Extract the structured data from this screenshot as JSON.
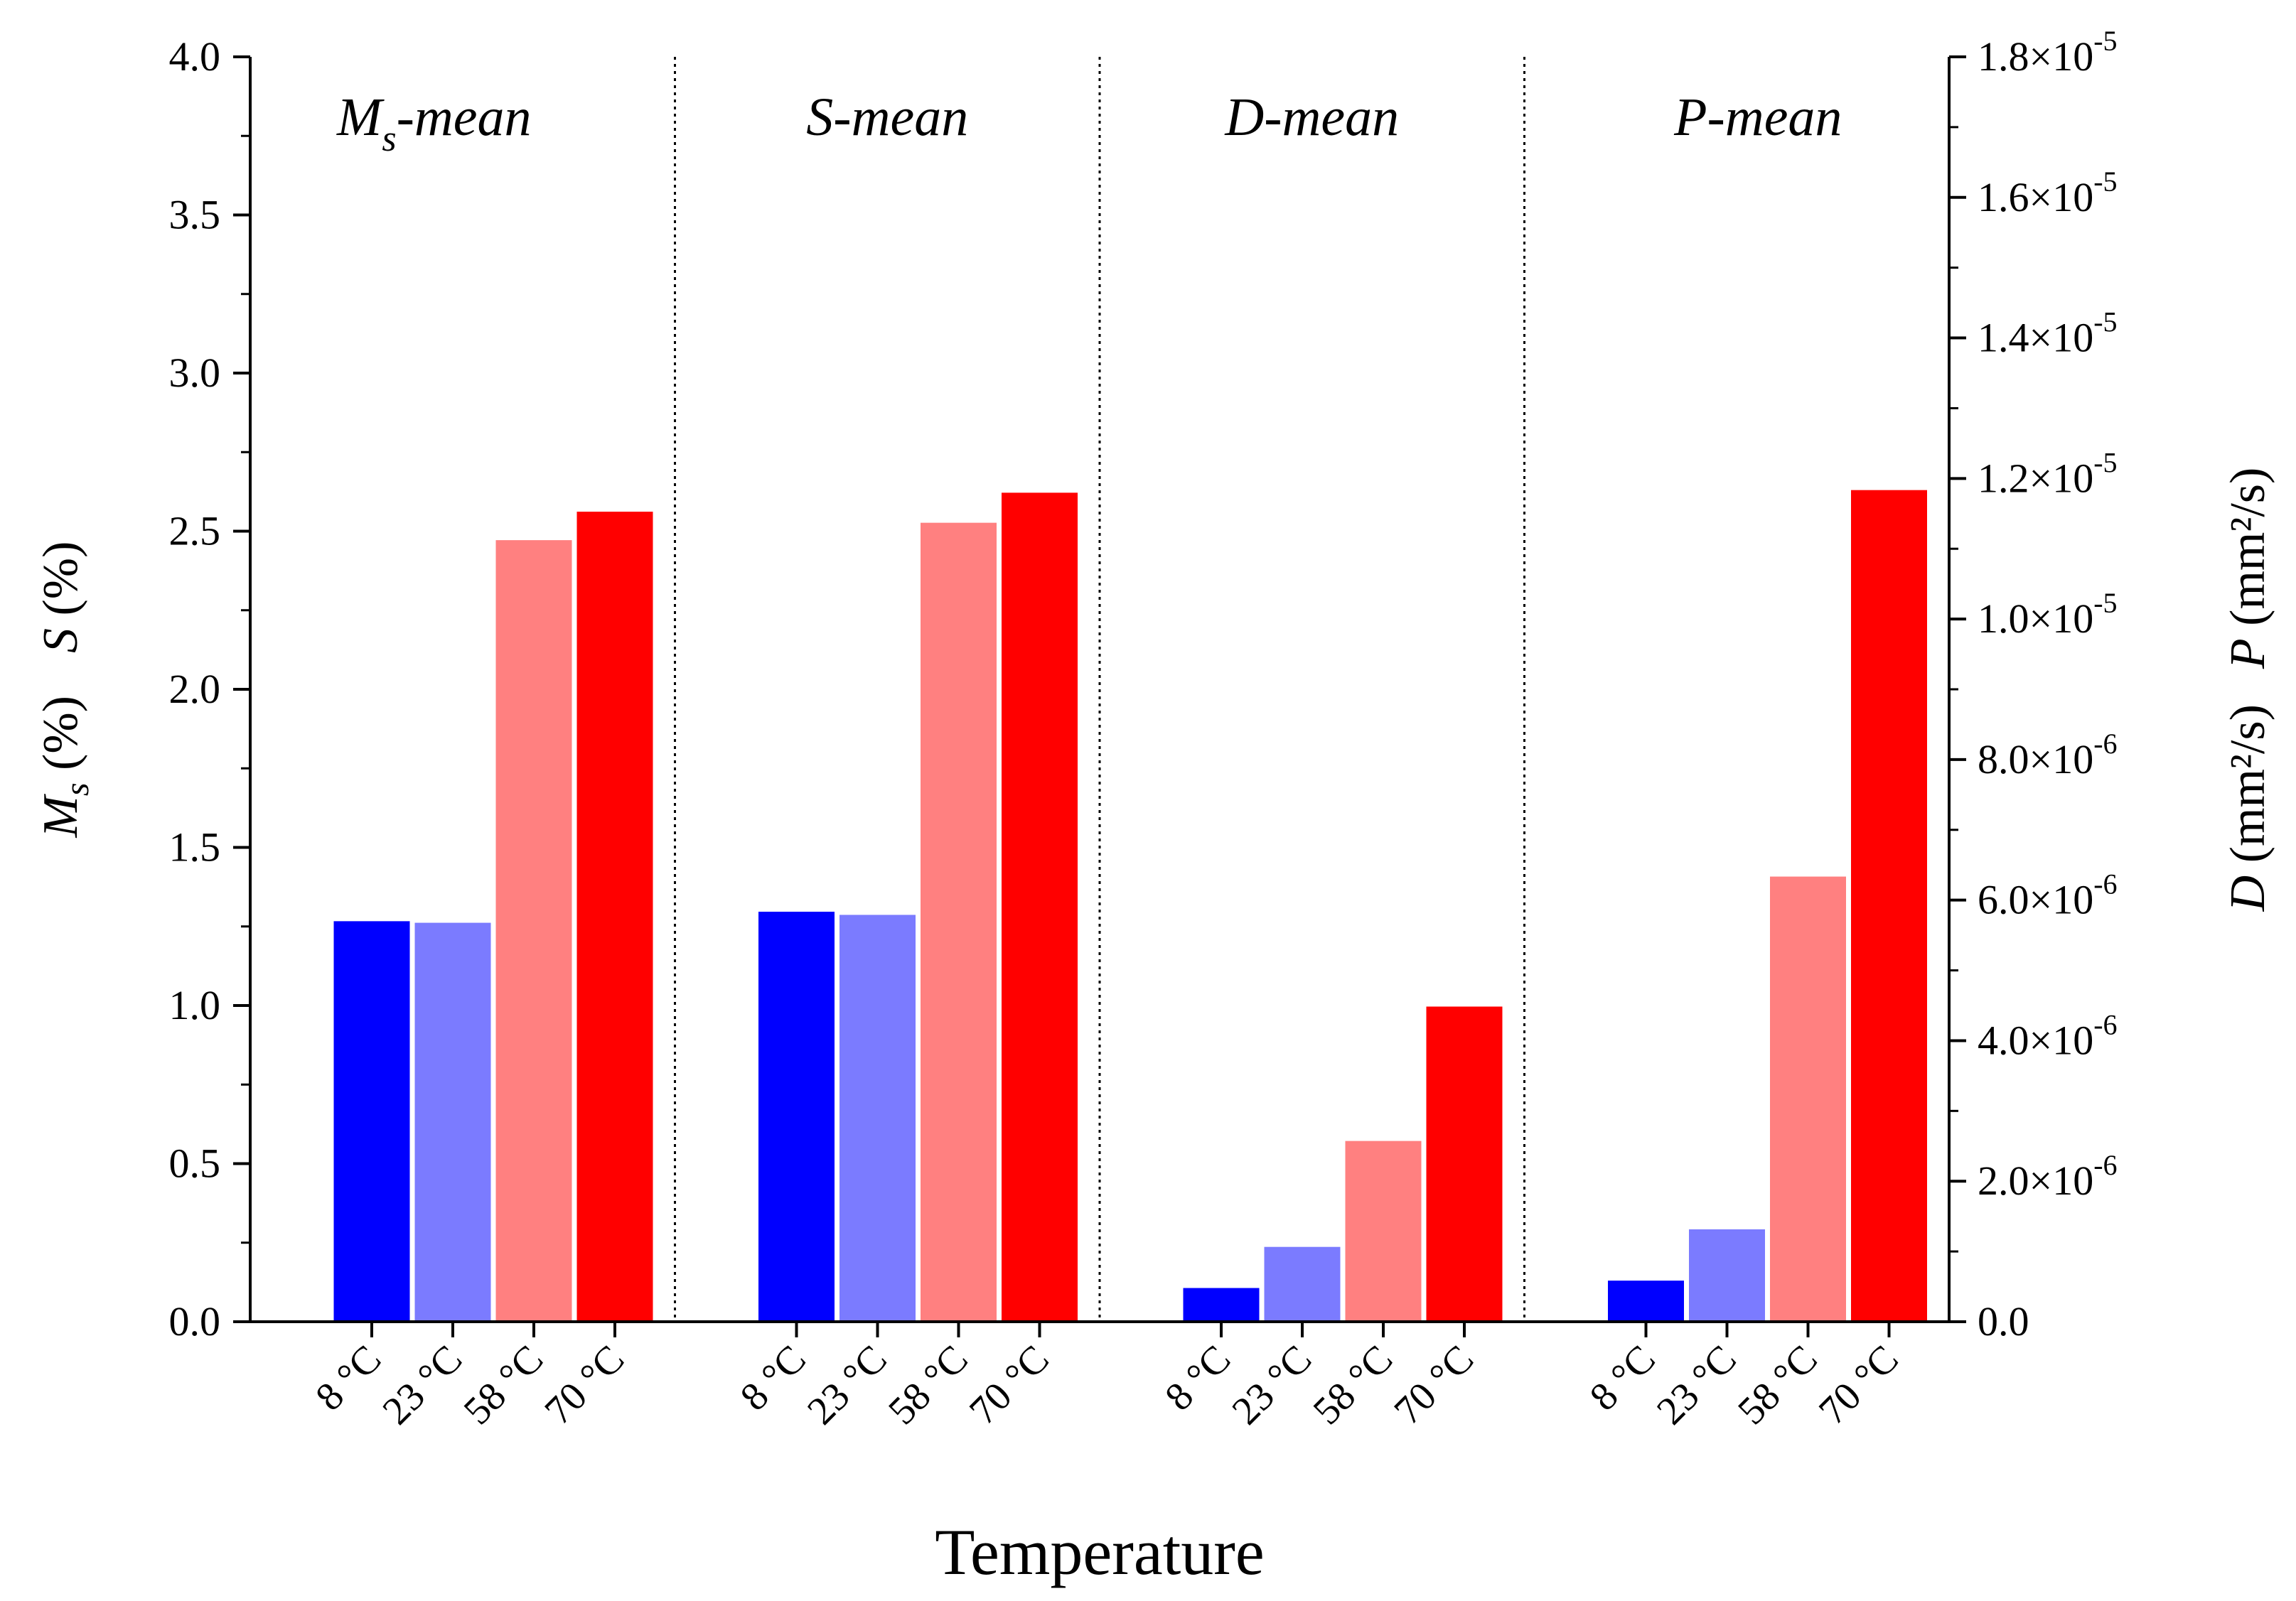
{
  "chart_data": {
    "type": "bar",
    "xlabel": "Temperature",
    "ylabel_left": {
      "ms_symbol": "M",
      "ms_sub": "s",
      "ms_unit": " (%)",
      "s_symbol": "S",
      "s_unit": " (%)"
    },
    "ylabel_right": {
      "d_symbol": "D",
      "d_unit": " (mm²/s)",
      "p_symbol": "P",
      "p_unit": " (mm²/s)"
    },
    "ylim_left": [
      0,
      4.0
    ],
    "ylim_right": [
      0,
      1.8e-05
    ],
    "yticks_left": [
      "0.0",
      "0.5",
      "1.0",
      "1.5",
      "2.0",
      "2.5",
      "3.0",
      "3.5",
      "4.0"
    ],
    "yticks_right": [
      {
        "mantissa": "0.0",
        "exp": ""
      },
      {
        "mantissa": "2.0×10",
        "exp": "-6"
      },
      {
        "mantissa": "4.0×10",
        "exp": "-6"
      },
      {
        "mantissa": "6.0×10",
        "exp": "-6"
      },
      {
        "mantissa": "8.0×10",
        "exp": "-6"
      },
      {
        "mantissa": "1.0×10",
        "exp": "-5"
      },
      {
        "mantissa": "1.2×10",
        "exp": "-5"
      },
      {
        "mantissa": "1.4×10",
        "exp": "-5"
      },
      {
        "mantissa": "1.6×10",
        "exp": "-5"
      },
      {
        "mantissa": "1.8×10",
        "exp": "-5"
      }
    ],
    "categories": [
      "8 °C",
      "23 °C",
      "58 °C",
      "70 °C"
    ],
    "colors": [
      "#0000ff",
      "#7b7bff",
      "#ff8080",
      "#ff0000"
    ],
    "groups": [
      {
        "title": "M",
        "title_sub": "s",
        "title_rest": "-mean",
        "axis": "left",
        "values": [
          1.27,
          1.265,
          2.475,
          2.565
        ]
      },
      {
        "title": "S",
        "title_sub": "",
        "title_rest": "-mean",
        "axis": "left",
        "values": [
          1.3,
          1.29,
          2.53,
          2.625
        ]
      },
      {
        "title": "D",
        "title_sub": "",
        "title_rest": "-mean",
        "axis": "left",
        "values": [
          0.11,
          0.24,
          0.575,
          1.0
        ]
      },
      {
        "title": "P",
        "title_sub": "",
        "title_rest": "-mean",
        "axis": "right",
        "values": [
          6e-07,
          1.33e-06,
          6.35e-06,
          1.185e-05
        ]
      }
    ]
  }
}
